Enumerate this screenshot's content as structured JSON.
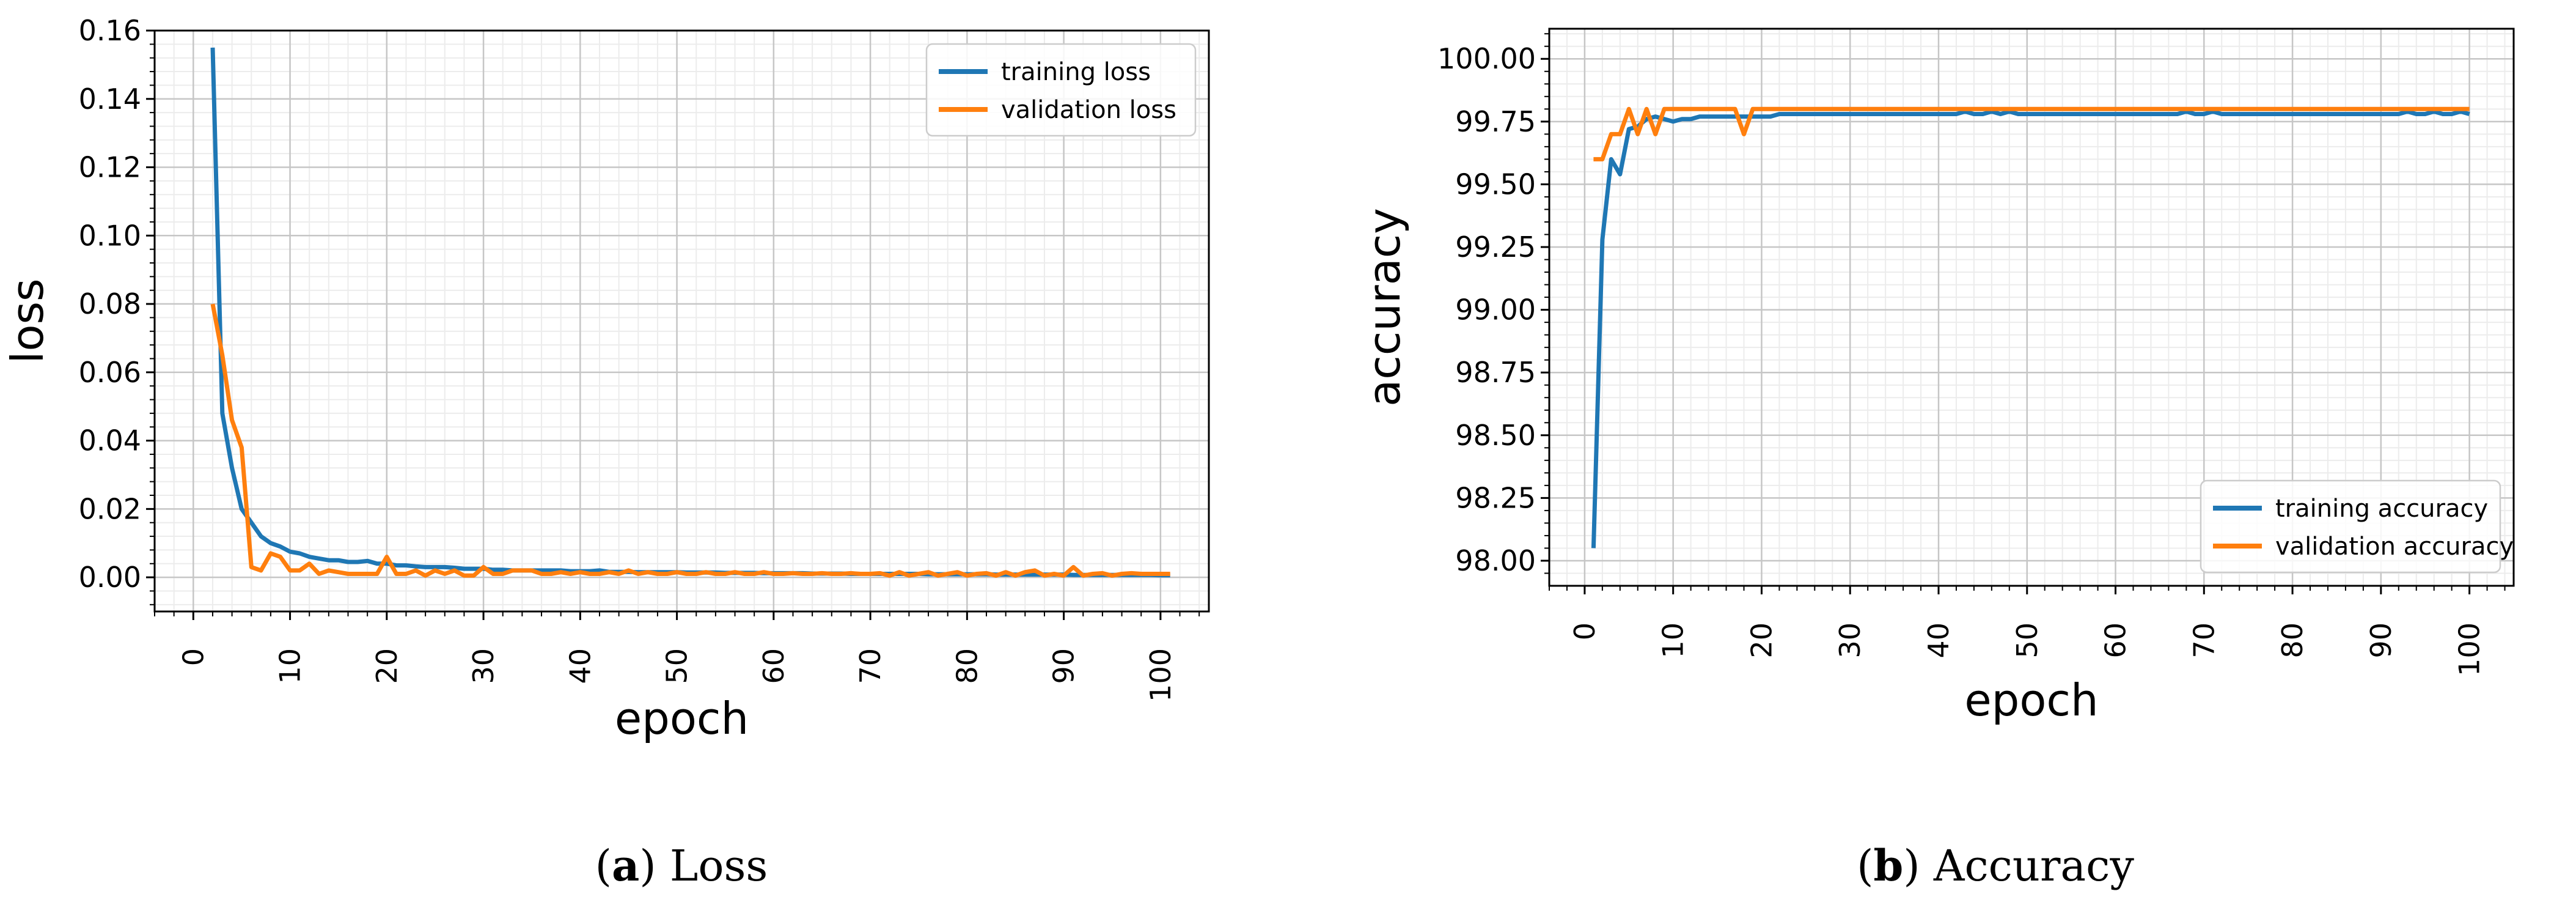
{
  "chart_data": [
    {
      "type": "line",
      "title": "",
      "xlabel": "epoch",
      "ylabel": "loss",
      "xlim": [
        -4,
        105
      ],
      "ylim": [
        -0.01,
        0.16
      ],
      "xticks": [
        0,
        10,
        20,
        30,
        40,
        50,
        60,
        70,
        80,
        90,
        100
      ],
      "xtick_labels": [
        "0",
        "10",
        "20",
        "30",
        "40",
        "50",
        "60",
        "70",
        "80",
        "90",
        "100"
      ],
      "yticks": [
        0.0,
        0.02,
        0.04,
        0.06,
        0.08,
        0.1,
        0.12,
        0.14,
        0.16
      ],
      "ytick_labels": [
        "0.00",
        "0.02",
        "0.04",
        "0.06",
        "0.08",
        "0.10",
        "0.12",
        "0.14",
        "0.16"
      ],
      "grid": true,
      "legend_position": "top-right",
      "series": [
        {
          "name": "training loss",
          "color": "#1f77b4",
          "x": [
            2,
            3,
            4,
            5,
            6,
            7,
            8,
            9,
            10,
            11,
            12,
            13,
            14,
            15,
            16,
            17,
            18,
            19,
            20,
            21,
            22,
            23,
            24,
            25,
            26,
            27,
            28,
            29,
            30,
            31,
            32,
            33,
            34,
            35,
            36,
            37,
            38,
            39,
            40,
            41,
            42,
            43,
            44,
            45,
            46,
            47,
            48,
            49,
            50,
            51,
            52,
            53,
            54,
            55,
            56,
            57,
            58,
            59,
            60,
            61,
            62,
            63,
            64,
            65,
            66,
            67,
            68,
            69,
            70,
            71,
            72,
            73,
            74,
            75,
            76,
            77,
            78,
            79,
            80,
            81,
            82,
            83,
            84,
            85,
            86,
            87,
            88,
            89,
            90,
            91,
            92,
            93,
            94,
            95,
            96,
            97,
            98,
            99,
            100,
            101
          ],
          "y": [
            0.155,
            0.048,
            0.032,
            0.02,
            0.016,
            0.012,
            0.01,
            0.009,
            0.0075,
            0.007,
            0.006,
            0.0055,
            0.005,
            0.005,
            0.0045,
            0.0045,
            0.0048,
            0.004,
            0.004,
            0.0035,
            0.0035,
            0.0032,
            0.003,
            0.003,
            0.003,
            0.0028,
            0.0025,
            0.0025,
            0.0025,
            0.0022,
            0.0022,
            0.002,
            0.002,
            0.002,
            0.002,
            0.002,
            0.002,
            0.0018,
            0.0018,
            0.0018,
            0.002,
            0.0016,
            0.0016,
            0.0016,
            0.0015,
            0.0015,
            0.0015,
            0.0015,
            0.0015,
            0.0014,
            0.0014,
            0.0014,
            0.0014,
            0.0013,
            0.0013,
            0.0013,
            0.0013,
            0.0012,
            0.0012,
            0.0012,
            0.0012,
            0.0012,
            0.0011,
            0.0011,
            0.0011,
            0.0011,
            0.001,
            0.001,
            0.001,
            0.001,
            0.001,
            0.001,
            0.001,
            0.001,
            0.0009,
            0.0009,
            0.0009,
            0.0009,
            0.0009,
            0.0009,
            0.0009,
            0.0008,
            0.0008,
            0.0008,
            0.0008,
            0.0008,
            0.0008,
            0.0008,
            0.0008,
            0.0007,
            0.0007,
            0.0007,
            0.0007,
            0.0007,
            0.0007,
            0.0007,
            0.0007,
            0.0007,
            0.0006,
            0.0006
          ]
        },
        {
          "name": "validation loss",
          "color": "#ff7f0e",
          "x": [
            2,
            3,
            4,
            5,
            6,
            7,
            8,
            9,
            10,
            11,
            12,
            13,
            14,
            15,
            16,
            17,
            18,
            19,
            20,
            21,
            22,
            23,
            24,
            25,
            26,
            27,
            28,
            29,
            30,
            31,
            32,
            33,
            34,
            35,
            36,
            37,
            38,
            39,
            40,
            41,
            42,
            43,
            44,
            45,
            46,
            47,
            48,
            49,
            50,
            51,
            52,
            53,
            54,
            55,
            56,
            57,
            58,
            59,
            60,
            61,
            62,
            63,
            64,
            65,
            66,
            67,
            68,
            69,
            70,
            71,
            72,
            73,
            74,
            75,
            76,
            77,
            78,
            79,
            80,
            81,
            82,
            83,
            84,
            85,
            86,
            87,
            88,
            89,
            90,
            91,
            92,
            93,
            94,
            95,
            96,
            97,
            98,
            99,
            100,
            101
          ],
          "y": [
            0.08,
            0.065,
            0.046,
            0.038,
            0.003,
            0.002,
            0.007,
            0.006,
            0.002,
            0.002,
            0.004,
            0.001,
            0.002,
            0.0015,
            0.001,
            0.001,
            0.001,
            0.001,
            0.006,
            0.001,
            0.001,
            0.002,
            0.0005,
            0.002,
            0.001,
            0.002,
            0.0005,
            0.0005,
            0.003,
            0.001,
            0.001,
            0.002,
            0.002,
            0.002,
            0.001,
            0.001,
            0.0015,
            0.001,
            0.0015,
            0.001,
            0.001,
            0.0015,
            0.001,
            0.002,
            0.001,
            0.0015,
            0.001,
            0.001,
            0.0015,
            0.001,
            0.001,
            0.0015,
            0.001,
            0.001,
            0.0015,
            0.001,
            0.001,
            0.0015,
            0.001,
            0.001,
            0.0012,
            0.001,
            0.001,
            0.0012,
            0.001,
            0.001,
            0.0012,
            0.001,
            0.001,
            0.0012,
            0.0005,
            0.0015,
            0.0005,
            0.001,
            0.0015,
            0.0005,
            0.001,
            0.0015,
            0.0005,
            0.001,
            0.0012,
            0.0005,
            0.0015,
            0.0005,
            0.0015,
            0.002,
            0.0005,
            0.001,
            0.0005,
            0.003,
            0.0005,
            0.001,
            0.0012,
            0.0005,
            0.001,
            0.0012,
            0.001,
            0.001,
            0.001,
            0.001
          ]
        }
      ]
    },
    {
      "type": "line",
      "title": "",
      "xlabel": "epoch",
      "ylabel": "accuracy",
      "xlim": [
        -4,
        105
      ],
      "ylim": [
        97.9,
        100.12
      ],
      "xticks": [
        0,
        10,
        20,
        30,
        40,
        50,
        60,
        70,
        80,
        90,
        100
      ],
      "xtick_labels": [
        "0",
        "10",
        "20",
        "30",
        "40",
        "50",
        "60",
        "70",
        "80",
        "90",
        "100"
      ],
      "yticks": [
        98.0,
        98.25,
        98.5,
        98.75,
        99.0,
        99.25,
        99.5,
        99.75,
        100.0
      ],
      "ytick_labels": [
        "98.00",
        "98.25",
        "98.50",
        "98.75",
        "99.00",
        "99.25",
        "99.50",
        "99.75",
        "100.00"
      ],
      "grid": true,
      "legend_position": "bottom-right",
      "series": [
        {
          "name": "training accuracy",
          "color": "#1f77b4",
          "x": [
            1,
            2,
            3,
            4,
            5,
            6,
            7,
            8,
            9,
            10,
            11,
            12,
            13,
            14,
            15,
            16,
            17,
            18,
            19,
            20,
            21,
            22,
            23,
            24,
            25,
            26,
            27,
            28,
            29,
            30,
            31,
            32,
            33,
            34,
            35,
            36,
            37,
            38,
            39,
            40,
            41,
            42,
            43,
            44,
            45,
            46,
            47,
            48,
            49,
            50,
            51,
            52,
            53,
            54,
            55,
            56,
            57,
            58,
            59,
            60,
            61,
            62,
            63,
            64,
            65,
            66,
            67,
            68,
            69,
            70,
            71,
            72,
            73,
            74,
            75,
            76,
            77,
            78,
            79,
            80,
            81,
            82,
            83,
            84,
            85,
            86,
            87,
            88,
            89,
            90,
            91,
            92,
            93,
            94,
            95,
            96,
            97,
            98,
            99,
            100
          ],
          "y": [
            98.05,
            99.28,
            99.6,
            99.54,
            99.72,
            99.73,
            99.76,
            99.77,
            99.76,
            99.75,
            99.76,
            99.76,
            99.77,
            99.77,
            99.77,
            99.77,
            99.77,
            99.77,
            99.77,
            99.77,
            99.77,
            99.78,
            99.78,
            99.78,
            99.78,
            99.78,
            99.78,
            99.78,
            99.78,
            99.78,
            99.78,
            99.78,
            99.78,
            99.78,
            99.78,
            99.78,
            99.78,
            99.78,
            99.78,
            99.78,
            99.78,
            99.78,
            99.79,
            99.78,
            99.78,
            99.79,
            99.78,
            99.79,
            99.78,
            99.78,
            99.78,
            99.78,
            99.78,
            99.78,
            99.78,
            99.78,
            99.78,
            99.78,
            99.78,
            99.78,
            99.78,
            99.78,
            99.78,
            99.78,
            99.78,
            99.78,
            99.78,
            99.79,
            99.78,
            99.78,
            99.79,
            99.78,
            99.78,
            99.78,
            99.78,
            99.78,
            99.78,
            99.78,
            99.78,
            99.78,
            99.78,
            99.78,
            99.78,
            99.78,
            99.78,
            99.78,
            99.78,
            99.78,
            99.78,
            99.78,
            99.78,
            99.78,
            99.79,
            99.78,
            99.78,
            99.79,
            99.78,
            99.78,
            99.79,
            99.78
          ]
        },
        {
          "name": "validation accuracy",
          "color": "#ff7f0e",
          "x": [
            1,
            2,
            3,
            4,
            5,
            6,
            7,
            8,
            9,
            10,
            11,
            12,
            13,
            14,
            15,
            16,
            17,
            18,
            19,
            20,
            21,
            22,
            23,
            24,
            25,
            26,
            27,
            28,
            29,
            30,
            31,
            32,
            33,
            34,
            35,
            36,
            37,
            38,
            39,
            40,
            41,
            42,
            43,
            44,
            45,
            46,
            47,
            48,
            49,
            50,
            51,
            52,
            53,
            54,
            55,
            56,
            57,
            58,
            59,
            60,
            61,
            62,
            63,
            64,
            65,
            66,
            67,
            68,
            69,
            70,
            71,
            72,
            73,
            74,
            75,
            76,
            77,
            78,
            79,
            80,
            81,
            82,
            83,
            84,
            85,
            86,
            87,
            88,
            89,
            90,
            91,
            92,
            93,
            94,
            95,
            96,
            97,
            98,
            99,
            100
          ],
          "y": [
            99.6,
            99.6,
            99.7,
            99.7,
            99.8,
            99.7,
            99.8,
            99.7,
            99.8,
            99.8,
            99.8,
            99.8,
            99.8,
            99.8,
            99.8,
            99.8,
            99.8,
            99.7,
            99.8,
            99.8,
            99.8,
            99.8,
            99.8,
            99.8,
            99.8,
            99.8,
            99.8,
            99.8,
            99.8,
            99.8,
            99.8,
            99.8,
            99.8,
            99.8,
            99.8,
            99.8,
            99.8,
            99.8,
            99.8,
            99.8,
            99.8,
            99.8,
            99.8,
            99.8,
            99.8,
            99.8,
            99.8,
            99.8,
            99.8,
            99.8,
            99.8,
            99.8,
            99.8,
            99.8,
            99.8,
            99.8,
            99.8,
            99.8,
            99.8,
            99.8,
            99.8,
            99.8,
            99.8,
            99.8,
            99.8,
            99.8,
            99.8,
            99.8,
            99.8,
            99.8,
            99.8,
            99.8,
            99.8,
            99.8,
            99.8,
            99.8,
            99.8,
            99.8,
            99.8,
            99.8,
            99.8,
            99.8,
            99.8,
            99.8,
            99.8,
            99.8,
            99.8,
            99.8,
            99.8,
            99.8,
            99.8,
            99.8,
            99.8,
            99.8,
            99.8,
            99.8,
            99.8,
            99.8,
            99.8,
            99.8
          ]
        }
      ]
    }
  ],
  "captions": [
    {
      "letter": "a",
      "text": "Loss"
    },
    {
      "letter": "b",
      "text": "Accuracy"
    }
  ]
}
